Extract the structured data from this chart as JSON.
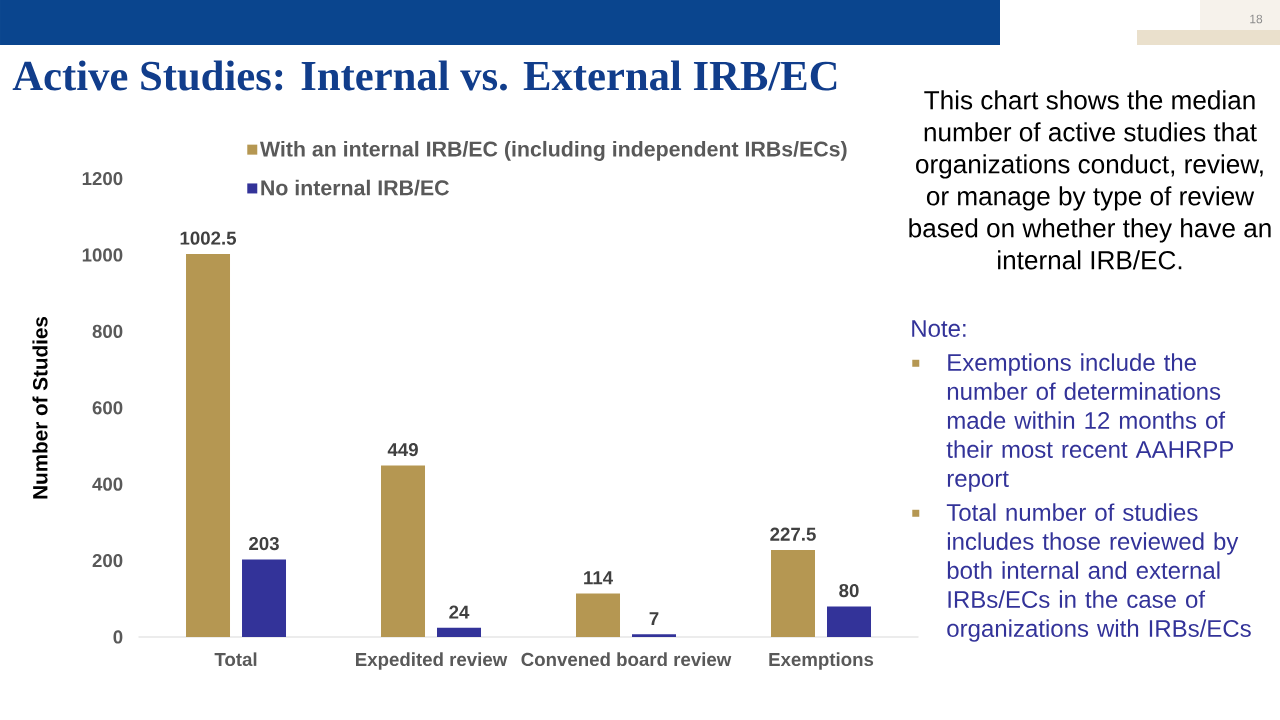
{
  "chart_data": {
    "type": "bar",
    "title": "Active Studies: Internal vs. External IRB/EC",
    "ylabel": "Number of Studies",
    "categories": [
      "Total",
      "Expedited review",
      "Convened board review",
      "Exemptions"
    ],
    "series": [
      {
        "name": "With an internal IRB/EC (including independent IRBs/ECs)",
        "color": "#b59752",
        "values": [
          1002.5,
          449,
          114,
          227.5
        ]
      },
      {
        "name": "No internal IRB/EC",
        "color": "#333399",
        "values": [
          203,
          24,
          7,
          80
        ]
      }
    ],
    "ylim": [
      0,
      1200
    ],
    "yticks": [
      0,
      200,
      400,
      600,
      800,
      1000,
      1200
    ],
    "data_labels": true,
    "legend": "top",
    "annotations": [
      "18",
      "This chart shows the median number of active studies that organizations conduct, review, or manage by type of review based on whether they have an internal IRB/EC.",
      "Note:",
      "Exemptions include the number of determinations made within 12 months of their most recent AAHRPP report",
      "Total number of studies includes those reviewed by both internal and external IRBs/ECs in the case of organizations with IRBs/ECs"
    ]
  }
}
